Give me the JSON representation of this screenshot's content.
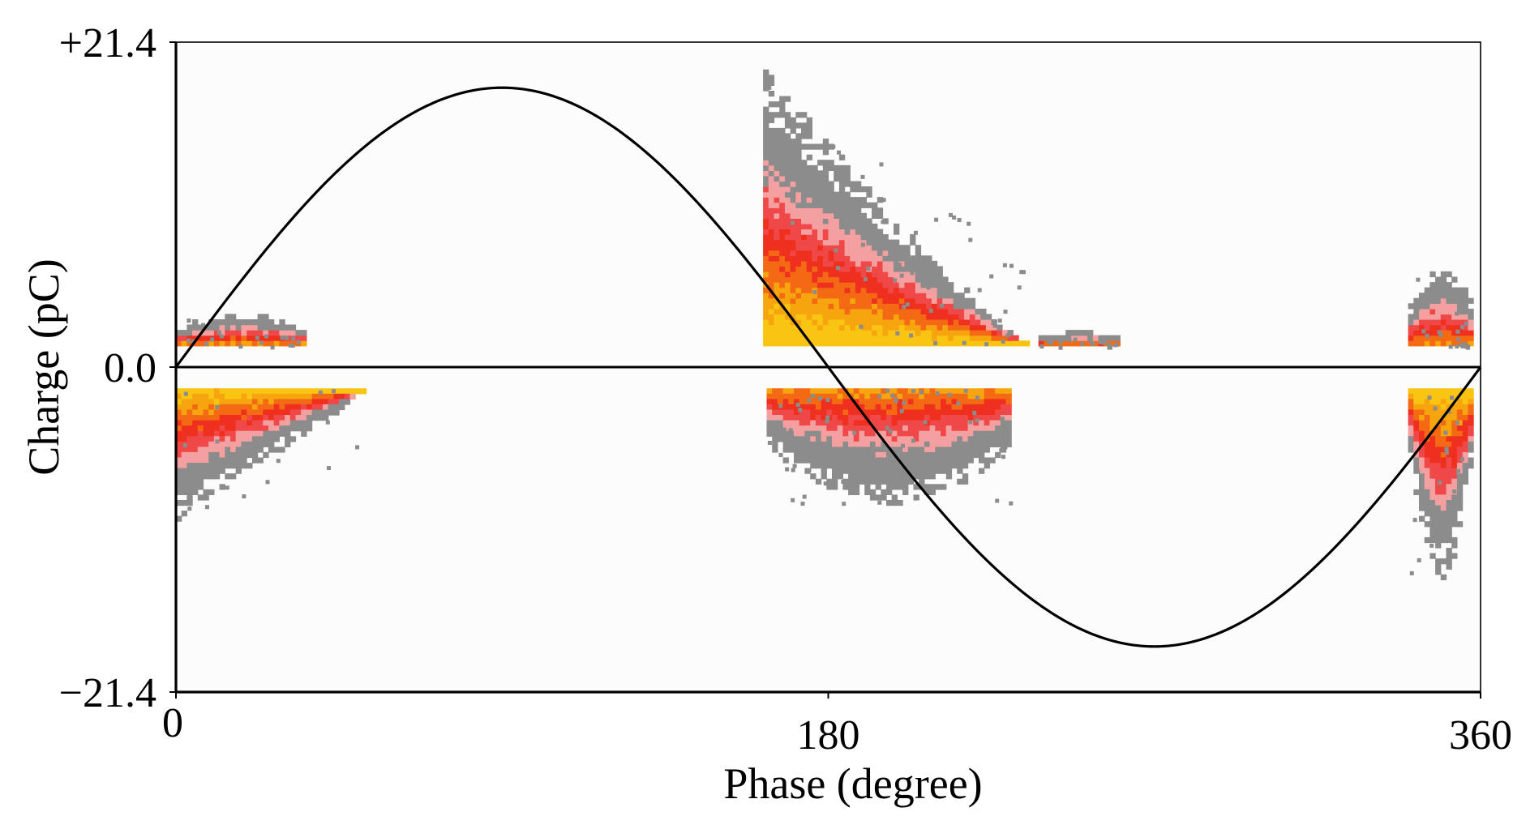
{
  "chart_data": {
    "type": "scatter",
    "title": "",
    "xlabel": "Phase (degree)",
    "ylabel": "Charge (pC)",
    "xlim": [
      0,
      360
    ],
    "ylim": [
      -21.4,
      21.4
    ],
    "x_ticks": [
      {
        "value": 0,
        "label": "0"
      },
      {
        "value": 180,
        "label": "180"
      },
      {
        "value": 360,
        "label": "360"
      }
    ],
    "y_ticks": [
      {
        "value": 21.4,
        "label": "+21.4"
      },
      {
        "value": 0,
        "label": "0.0"
      },
      {
        "value": -21.4,
        "label": "−21.4"
      }
    ],
    "grid": false,
    "legend": "none",
    "reference_curve": {
      "shape": "sine",
      "amplitude": 18.4,
      "period": 360,
      "color": "#000000"
    },
    "zero_line": true,
    "colormap": [
      "#8c8c8c",
      "#f4a0a0",
      "#f04848",
      "#f0301e",
      "#f46a14",
      "#f6a50e",
      "#f9c512"
    ],
    "clusters": [
      {
        "phase_start": 0,
        "phase_end": 35,
        "charge_max": 3.5,
        "charge_min": 1.4,
        "polarity": "positive",
        "density": 0.3
      },
      {
        "phase_start": 162,
        "phase_end": 235,
        "charge_max": 19.5,
        "charge_min": 1.4,
        "polarity": "positive",
        "density": 1.0
      },
      {
        "phase_start": 238,
        "phase_end": 260,
        "charge_max": 2.2,
        "charge_min": 1.4,
        "polarity": "positive",
        "density": 0.1
      },
      {
        "phase_start": 340,
        "phase_end": 357,
        "charge_max": 6.6,
        "charge_min": 1.4,
        "polarity": "positive",
        "density": 0.3
      },
      {
        "phase_start": 0,
        "phase_end": 52,
        "charge_max": -1.4,
        "charge_min": -10.0,
        "polarity": "negative",
        "density": 0.8
      },
      {
        "phase_start": 163,
        "phase_end": 230,
        "charge_max": -1.4,
        "charge_min": -9.0,
        "polarity": "negative",
        "density": 0.35
      },
      {
        "phase_start": 340,
        "phase_end": 357,
        "charge_max": -1.4,
        "charge_min": -14.0,
        "polarity": "negative",
        "density": 0.9
      }
    ]
  }
}
